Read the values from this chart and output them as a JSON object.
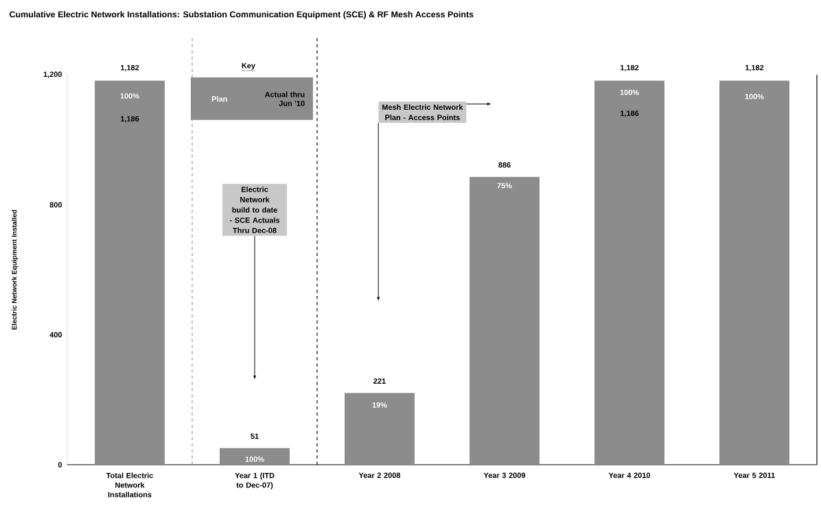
{
  "chart_data": {
    "type": "bar",
    "title": "Cumulative Electric Network Installations: Substation Communication Equipment (SCE) & RF Mesh Access Points",
    "ylabel": "Electric Network Equipment Installed",
    "categories": [
      "Total Electric Network Installations",
      "Year 1 (ITD to Dec-07)",
      "Year 2 2008",
      "Year 3 2009",
      "Year 4 2010",
      "Year 5 2011"
    ],
    "values": [
      1182,
      51,
      221,
      886,
      1182,
      1182
    ],
    "value_labels": [
      "1,182",
      "51",
      "221",
      "886",
      "1,182",
      "1,182"
    ],
    "color": "#8c8c8c",
    "ylim": [
      0,
      1200
    ],
    "yticks": [
      0,
      400,
      800,
      {
        "value": 1200,
        "label": "1,200"
      }
    ],
    "annotations": [
      "100%",
      "1,186",
      "100%",
      "19%",
      "75%",
      "100%",
      "1,186",
      "100%",
      "Key",
      "Plan",
      "Actual thru Jun '10",
      "Electric Network build to date - SCE Actuals Thru Dec-08",
      "Mesh Electric Network Plan - Access Points"
    ]
  }
}
